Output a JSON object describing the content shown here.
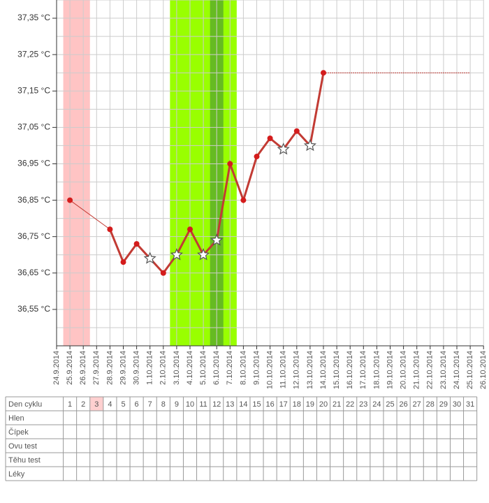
{
  "chart_data": {
    "type": "line",
    "x": [
      "24.9.2014",
      "25.9.2014",
      "26.9.2014",
      "27.9.2014",
      "28.9.2014",
      "29.9.2014",
      "30.9.2014",
      "1.10.2014",
      "2.10.2014",
      "3.10.2014",
      "4.10.2014",
      "5.10.2014",
      "6.10.2014",
      "7.10.2014",
      "8.10.2014",
      "9.10.2014",
      "10.10.2014",
      "11.10.2014",
      "12.10.2014",
      "13.10.2014",
      "14.10.2014",
      "15.10.2014",
      "16.10.2014",
      "17.10.2014",
      "18.10.2014",
      "19.10.2014",
      "20.10.2014",
      "21.10.2014",
      "22.10.2014",
      "23.10.2014",
      "24.10.2014",
      "25.10.2014",
      "26.10.2014"
    ],
    "values": [
      null,
      36.85,
      null,
      null,
      36.77,
      36.68,
      36.73,
      36.69,
      36.65,
      36.7,
      36.77,
      36.7,
      36.74,
      36.95,
      36.85,
      36.97,
      37.02,
      36.99,
      37.04,
      37.0,
      37.2,
      null,
      null,
      null,
      null,
      null,
      null,
      null,
      null,
      null,
      null,
      null,
      null
    ],
    "markers": [
      null,
      "dot",
      null,
      null,
      "dot",
      "dot",
      "dot",
      "star",
      "dot",
      "star",
      "dot",
      "star",
      "star",
      "dot",
      "dot",
      "dot",
      "dot",
      "star",
      "dot",
      "star",
      "dot",
      null,
      null,
      null,
      null,
      null,
      null,
      null,
      null,
      null,
      null,
      null,
      null
    ],
    "projected_values": [
      null,
      null,
      null,
      null,
      null,
      null,
      null,
      null,
      null,
      null,
      null,
      null,
      null,
      null,
      null,
      null,
      null,
      null,
      null,
      null,
      37.2,
      37.2,
      37.2,
      37.2,
      37.2,
      37.2,
      37.2,
      37.2,
      37.2,
      37.2,
      37.2,
      37.2,
      null
    ],
    "color": "#c23b34",
    "dot_color": "#d41c1c",
    "bands": [
      {
        "start": "25.9.2014",
        "end": "26.9.2014",
        "color": "#ffc4c4"
      },
      {
        "start": "3.10.2014",
        "end": "7.10.2014",
        "color": "#99ff00"
      },
      {
        "start": "6.10.2014",
        "end": "6.10.2014",
        "color": "#66bb22"
      }
    ],
    "ylim": [
      36.45,
      37.4
    ],
    "yticks": [
      {
        "value": 36.55,
        "label": "36,55 °C"
      },
      {
        "value": 36.65,
        "label": "36,65 °C"
      },
      {
        "value": 36.75,
        "label": "36,75 °C"
      },
      {
        "value": 36.85,
        "label": "36,85 °C"
      },
      {
        "value": 36.95,
        "label": "36,95 °C"
      },
      {
        "value": 37.05,
        "label": "37,05 °C"
      },
      {
        "value": 37.15,
        "label": "37,15 °C"
      },
      {
        "value": 37.25,
        "label": "37,25 °C"
      },
      {
        "value": 37.35,
        "label": "37,35 °C"
      }
    ],
    "grid": true,
    "table": {
      "rows": [
        "Den cyklu",
        "Hlen",
        "Čípek",
        "Ovu test",
        "Těhu test",
        "Léky"
      ],
      "cycle_days": [
        1,
        2,
        3,
        4,
        5,
        6,
        7,
        8,
        9,
        10,
        11,
        12,
        13,
        14,
        15,
        16,
        17,
        18,
        19,
        20,
        21,
        22,
        23,
        24,
        25,
        26,
        27,
        28,
        29,
        30,
        31
      ],
      "highlight_day": 3,
      "highlight_color": "#ffd0d0"
    }
  }
}
